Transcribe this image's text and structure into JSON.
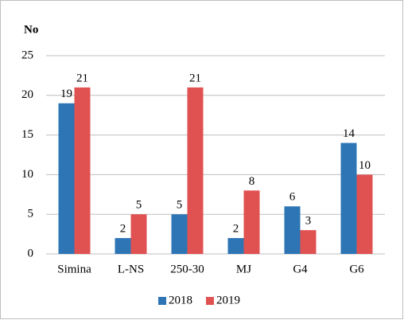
{
  "chart_data": {
    "type": "bar",
    "ylabel": "No",
    "categories": [
      "Simina",
      "L-NS",
      "250-30",
      "MJ",
      "G4",
      "G6"
    ],
    "series": [
      {
        "name": "2018",
        "color": "#2e75b6",
        "values": [
          19,
          2,
          5,
          2,
          6,
          14
        ]
      },
      {
        "name": "2019",
        "color": "#e05252",
        "values": [
          21,
          5,
          21,
          8,
          3,
          10
        ]
      }
    ],
    "ylim": [
      0,
      25
    ],
    "yticks": [
      0,
      5,
      10,
      15,
      20,
      25
    ],
    "grid": true,
    "legend": "bottom"
  }
}
